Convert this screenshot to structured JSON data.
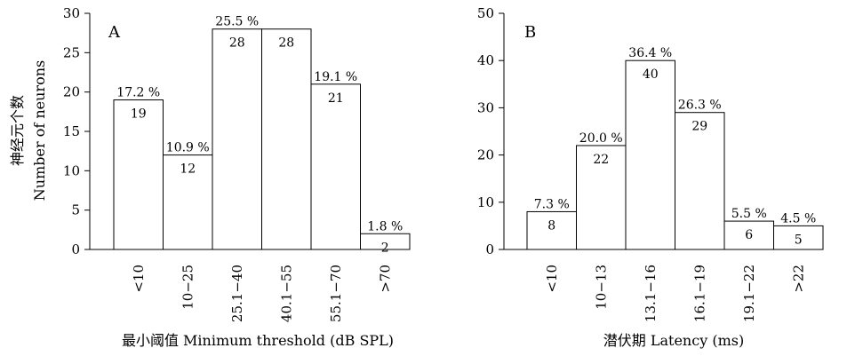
{
  "chart_data": [
    {
      "type": "bar",
      "panel_label": "A",
      "categories": [
        "<10",
        "10−25",
        "25.1−40",
        "40.1−55",
        "55.1−70",
        ">70"
      ],
      "values": [
        19,
        12,
        28,
        28,
        21,
        2
      ],
      "percent_labels": [
        "17.2 %",
        "10.9 %",
        "25.5  %",
        "",
        "19.1 %",
        "1.8 %"
      ],
      "xlabel": "最小阈值 Minimum threshold (dB SPL)",
      "ylabel_cn": "神经元个数",
      "ylabel_en": "Number of neurons",
      "ylim": [
        0,
        30
      ],
      "yticks": [
        0,
        5,
        10,
        15,
        20,
        25,
        30
      ],
      "grid": false
    },
    {
      "type": "bar",
      "panel_label": "B",
      "categories": [
        "<10",
        "10−13",
        "13.1−16",
        "16.1−19",
        "19.1−22",
        ">22"
      ],
      "values": [
        8,
        22,
        40,
        29,
        6,
        5
      ],
      "percent_labels": [
        "7.3 %",
        "20.0 %",
        "36.4 %",
        "26.3 %",
        "5.5 %",
        "4.5 %"
      ],
      "xlabel": "潜伏期  Latency (ms)",
      "ylim": [
        0,
        50
      ],
      "yticks": [
        0,
        10,
        20,
        30,
        40,
        50
      ],
      "grid": false
    }
  ]
}
